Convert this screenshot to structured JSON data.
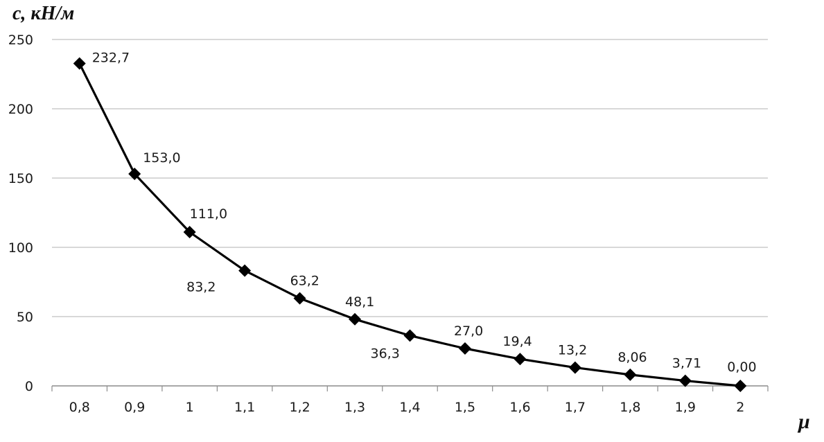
{
  "chart_data": {
    "type": "line",
    "title": "",
    "xlabel": "μ",
    "ylabel": "c, кН/м",
    "categories": [
      "0,8",
      "0,9",
      "1",
      "1,1",
      "1,2",
      "1,3",
      "1,4",
      "1,5",
      "1,6",
      "1,7",
      "1,8",
      "1,9",
      "2"
    ],
    "series": [
      {
        "values": [
          232.7,
          153.0,
          111.0,
          83.2,
          63.2,
          48.1,
          36.3,
          27.0,
          19.4,
          13.2,
          8.06,
          3.71,
          0.0
        ],
        "labels": [
          "232,7",
          "153,0",
          "111,0",
          "83,2",
          "63,2",
          "48,1",
          "36,3",
          "27,0",
          "19,4",
          "13,2",
          "8,06",
          "3,71",
          "0,00"
        ],
        "marker": "diamond",
        "color": "#000000"
      }
    ],
    "ylim": [
      0,
      250
    ],
    "yticks": [
      0,
      50,
      100,
      150,
      200,
      250
    ],
    "ytick_labels": [
      "0",
      "50",
      "100",
      "150",
      "200",
      "250"
    ],
    "grid": "horizontal",
    "legend": "none",
    "gridline_color": "#b0b0b0",
    "axis_color": "#8c8c8c"
  }
}
